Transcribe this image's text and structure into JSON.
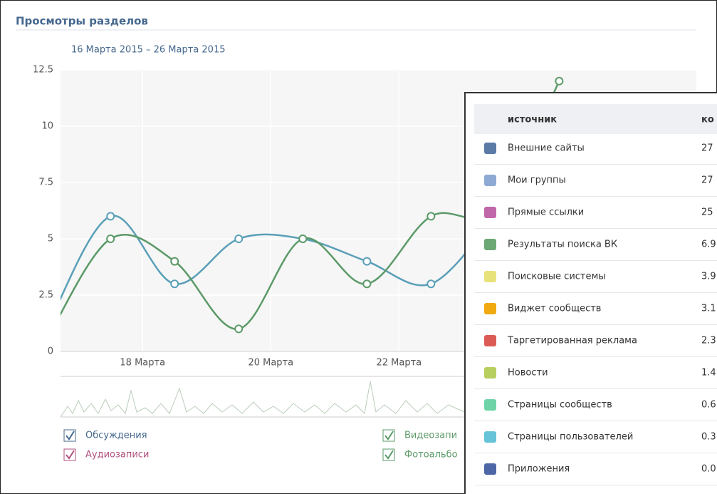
{
  "header": {
    "title": "Просмотры разделов"
  },
  "chart_data": {
    "type": "line",
    "subtitle": "16 Марта 2015 – 26 Марта 2015",
    "x": [
      16.5,
      17.5,
      18.5,
      19.5,
      20.5,
      21.5,
      22.5,
      23.5,
      24.5
    ],
    "xlim": [
      16.72,
      26.64
    ],
    "xticks": [
      {
        "value": 18,
        "label": "18 Марта"
      },
      {
        "value": 20,
        "label": "20 Марта"
      },
      {
        "value": 22,
        "label": "22 Марта"
      }
    ],
    "ylim": [
      0,
      12.5
    ],
    "yticks": [
      0,
      2.5,
      5,
      7.5,
      10,
      12.5
    ],
    "grid": true,
    "series": [
      {
        "color": "#5a9fb8",
        "values": [
          1,
          6,
          3,
          5,
          5,
          4,
          3,
          6,
          null
        ]
      },
      {
        "color": "#5b9a68",
        "values": [
          0.5,
          5,
          4,
          1,
          5,
          3,
          6,
          6.3,
          12
        ]
      }
    ],
    "legend": [
      {
        "label": "Обсуждения",
        "color": "#45688e"
      },
      {
        "label": "Аудиозаписи",
        "color": "#b0507f"
      },
      {
        "label": "Видеозапи",
        "color": "#5b9a68"
      },
      {
        "label": "Фотоальбо",
        "color": "#5b9a68"
      }
    ]
  },
  "table": {
    "header": [
      "источник",
      "ко"
    ],
    "rows": [
      {
        "color": "#5b7aa6",
        "cells": [
          "Внешние сайты",
          "27"
        ]
      },
      {
        "color": "#8eaad4",
        "cells": [
          "Мои группы",
          "27"
        ]
      },
      {
        "color": "#c067aa",
        "cells": [
          "Прямые ссылки",
          "25"
        ]
      },
      {
        "color": "#6ca873",
        "cells": [
          "Результаты поиска ВК",
          "6.9"
        ]
      },
      {
        "color": "#e8e27a",
        "cells": [
          "Поисковые системы",
          "3.9"
        ]
      },
      {
        "color": "#f0aa10",
        "cells": [
          "Виджет сообществ",
          "3.1"
        ]
      },
      {
        "color": "#dd5b55",
        "cells": [
          "Таргетированная реклама",
          "2.3"
        ]
      },
      {
        "color": "#b7cf5e",
        "cells": [
          "Новости",
          "1.4"
        ]
      },
      {
        "color": "#6fd3a8",
        "cells": [
          "Страницы сообществ",
          "0.6"
        ]
      },
      {
        "color": "#66c3d8",
        "cells": [
          "Страницы пользователей",
          "0.3"
        ]
      },
      {
        "color": "#4d66a6",
        "cells": [
          "Приложения",
          "0.0"
        ]
      }
    ]
  }
}
